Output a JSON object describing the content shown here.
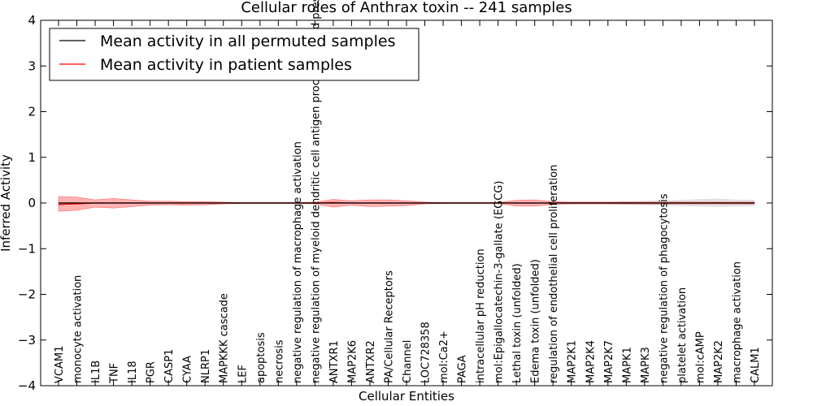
{
  "chart_data": {
    "type": "line",
    "title": "Cellular roles of Anthrax toxin -- 241 samples",
    "xlabel": "Cellular Entities",
    "ylabel": "Inferred Activity",
    "ylim": [
      -4,
      4
    ],
    "yticks": [
      "−4",
      "−3",
      "−2",
      "−1",
      "0",
      "1",
      "2",
      "3",
      "4"
    ],
    "grid": false,
    "legend_position": "top-left",
    "categories": [
      "VCAM1",
      "monocyte activation",
      "IL1B",
      "TNF",
      "IL18",
      "PGR",
      "CASP1",
      "CYAA",
      "NLRP1",
      "MAPKKK cascade",
      "LEF",
      "apoptosis",
      "necrosis",
      "negative regulation of macrophage activation",
      "negative regulation of myeloid dendritic cell antigen processing and presentation",
      "ANTXR1",
      "MAP2K6",
      "ANTXR2",
      "PA/Cellular Receptors",
      "Channel",
      "LOC728358",
      "mol:Ca2+",
      "PAGA",
      "intracellular pH reduction",
      "mol:Epigallocatechin-3-gallate (EGCG)",
      "Lethal toxin (unfolded)",
      "Edema toxin (unfolded)",
      "regulation of endothelial cell proliferation",
      "MAP2K1",
      "MAP2K4",
      "MAP2K7",
      "MAPK1",
      "MAPK3",
      "negative regulation of phagocytosis",
      "platelet activation",
      "mol:cAMP",
      "MAP2K2",
      "macrophage activation",
      "CALM1"
    ],
    "series": [
      {
        "name": "Mean activity in all permuted samples",
        "color": "#000000",
        "values": [
          0,
          0,
          0,
          0,
          0,
          0,
          0,
          0,
          0,
          0,
          0,
          0,
          0,
          0,
          0,
          0,
          0,
          0,
          0,
          0,
          0,
          0,
          0,
          0,
          0,
          0,
          0,
          0,
          0,
          0,
          0,
          0,
          0,
          0,
          0,
          0,
          0,
          0,
          0
        ],
        "band_upper": [
          0.01,
          0.01,
          0.01,
          0.01,
          0.01,
          0.01,
          0.01,
          0.01,
          0.01,
          0.01,
          0.01,
          0.01,
          0.01,
          0.01,
          0.01,
          0.01,
          0.01,
          0.01,
          0.01,
          0.01,
          0.01,
          0.01,
          0.01,
          0.01,
          0.01,
          0.01,
          0.01,
          0.01,
          0.02,
          0.02,
          0.02,
          0.03,
          0.04,
          0.05,
          0.06,
          0.08,
          0.09,
          0.07,
          0.06
        ],
        "band_lower": [
          -0.01,
          -0.01,
          -0.01,
          -0.01,
          -0.01,
          -0.01,
          -0.01,
          -0.01,
          -0.01,
          -0.01,
          -0.01,
          -0.01,
          -0.01,
          -0.01,
          -0.01,
          -0.01,
          -0.01,
          -0.01,
          -0.01,
          -0.01,
          -0.01,
          -0.01,
          -0.01,
          -0.01,
          -0.01,
          -0.01,
          -0.01,
          -0.01,
          -0.02,
          -0.02,
          -0.02,
          -0.03,
          -0.04,
          -0.05,
          -0.06,
          -0.07,
          -0.08,
          -0.07,
          -0.06
        ],
        "band_color": "#c8c8c8"
      },
      {
        "name": "Mean activity in patient samples",
        "color": "#ff0000",
        "values": [
          -0.03,
          -0.02,
          0,
          0,
          0,
          0,
          0,
          0,
          0,
          0,
          0,
          0,
          0,
          0,
          0,
          0.01,
          0,
          0,
          0,
          0,
          0,
          0,
          0,
          0,
          0,
          0,
          0,
          0,
          0,
          0,
          0,
          0,
          0,
          0,
          0,
          0,
          0,
          0,
          0
        ],
        "band_upper": [
          0.14,
          0.13,
          0.07,
          0.1,
          0.07,
          0.04,
          0.04,
          0.03,
          0.03,
          0.02,
          0.01,
          0.01,
          0.01,
          0.01,
          0.02,
          0.08,
          0.05,
          0.07,
          0.07,
          0.05,
          0.02,
          0.01,
          0.01,
          0.01,
          0.01,
          0.06,
          0.07,
          0.03,
          0.02,
          0.02,
          0.02,
          0.02,
          0.02,
          0.02,
          0.02,
          0.02,
          0.02,
          0.02,
          0.02
        ],
        "band_lower": [
          -0.18,
          -0.16,
          -0.09,
          -0.11,
          -0.08,
          -0.05,
          -0.04,
          -0.05,
          -0.04,
          -0.02,
          -0.01,
          -0.01,
          -0.01,
          -0.01,
          -0.02,
          -0.09,
          -0.05,
          -0.08,
          -0.07,
          -0.06,
          -0.02,
          -0.01,
          -0.01,
          -0.01,
          -0.01,
          -0.07,
          -0.07,
          -0.03,
          -0.02,
          -0.02,
          -0.02,
          -0.02,
          -0.02,
          -0.02,
          -0.02,
          -0.02,
          -0.02,
          -0.02,
          -0.02
        ],
        "band_color": "#ff0000"
      }
    ]
  }
}
